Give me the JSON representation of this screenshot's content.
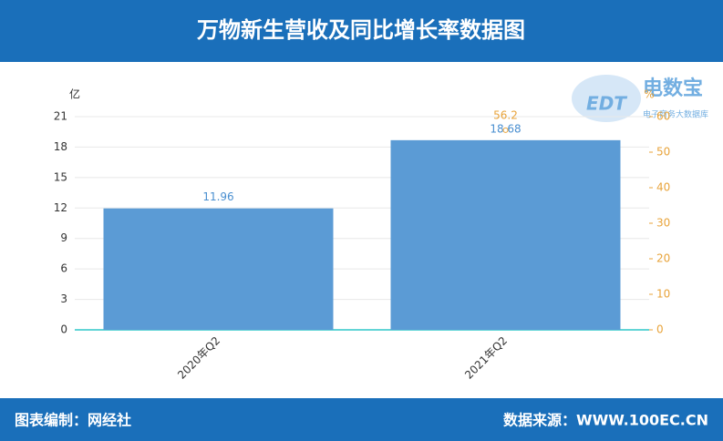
{
  "header": {
    "title": "万物新生营收及同比增长率数据图"
  },
  "logo": {
    "name": "电数宝",
    "mark": "EDT",
    "tagline": "电子商务大数据库"
  },
  "chart_data": {
    "type": "bar",
    "y_unit": "亿",
    "y2_unit": "%",
    "categories": [
      "2020年Q2",
      "2021年Q2"
    ],
    "series": [
      {
        "type": "bar",
        "color": "#5b9bd5",
        "values": [
          11.96,
          18.68
        ]
      },
      {
        "type": "line",
        "axis": "y2",
        "color": "#e8a33a",
        "values": [
          null,
          56.2
        ]
      }
    ],
    "ylim": [
      0,
      21
    ],
    "yticks": [
      0,
      3,
      6,
      9,
      12,
      15,
      18,
      21
    ],
    "y2lim": [
      0,
      60
    ],
    "y2ticks": [
      0,
      10,
      20,
      30,
      40,
      50,
      60
    ],
    "grid": true
  },
  "footer": {
    "left": "图表编制：网经社",
    "right": "数据来源：WWW.100EC.CN"
  }
}
